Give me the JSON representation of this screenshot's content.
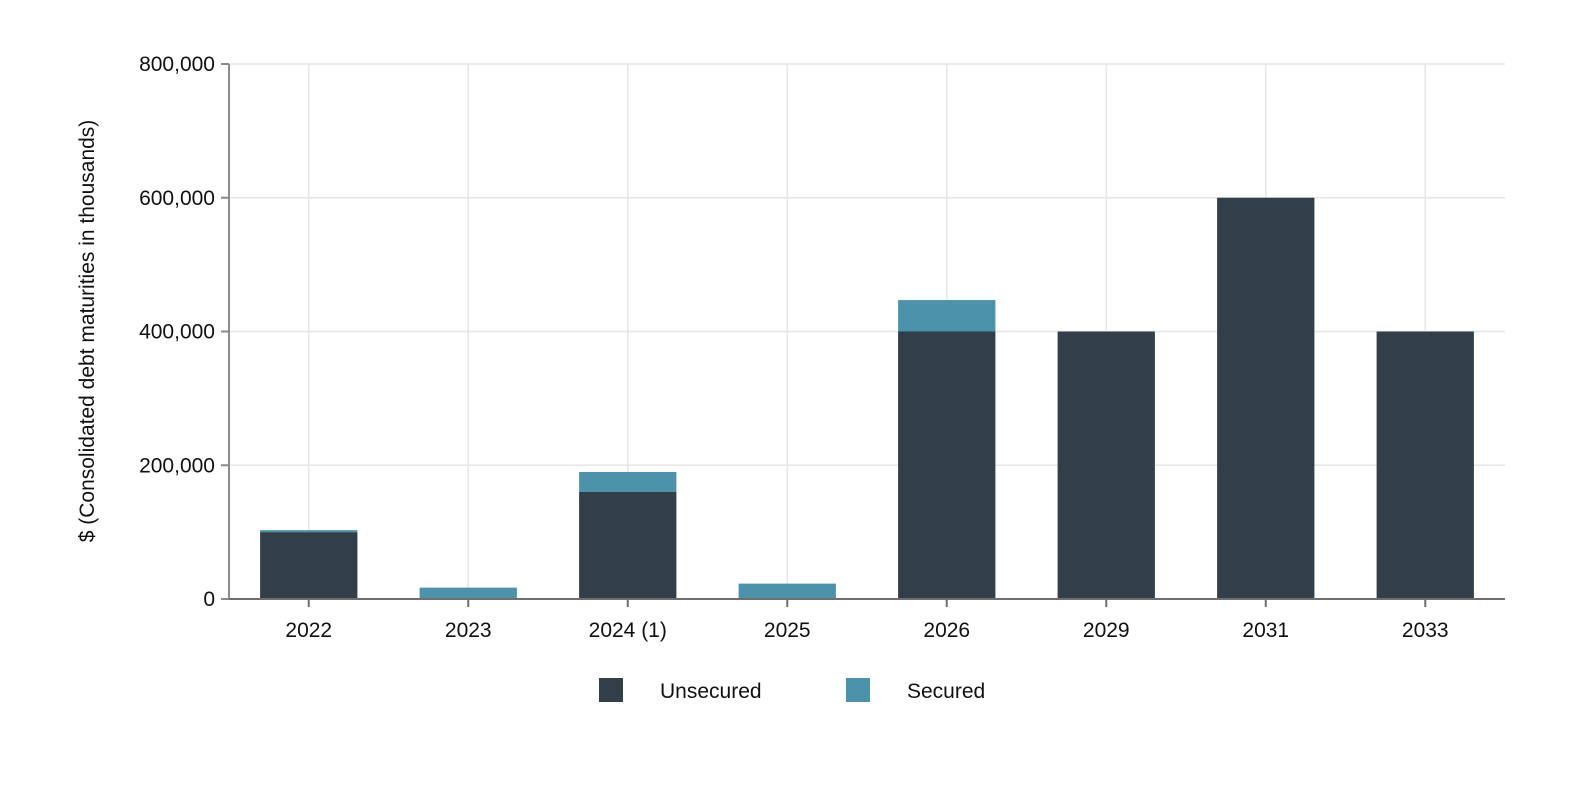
{
  "chart_data": {
    "type": "bar",
    "stacked": true,
    "title": "",
    "xlabel": "",
    "ylabel": "$ (Consolidated debt maturities in thousands)",
    "categories": [
      "2022",
      "2023",
      "2024 (1)",
      "2025",
      "2026",
      "2029",
      "2031",
      "2033"
    ],
    "series": [
      {
        "name": "Unsecured",
        "color": "#323f48",
        "values": [
          100000,
          0,
          160000,
          0,
          400000,
          400000,
          600000,
          400000
        ]
      },
      {
        "name": "Secured",
        "color": "#4d92ab",
        "values": [
          3000,
          17000,
          30000,
          23000,
          47000,
          0,
          0,
          0
        ]
      }
    ],
    "ylim": [
      0,
      800000
    ],
    "yticks": [
      0,
      200000,
      400000,
      600000,
      800000
    ],
    "ytick_labels": [
      "0",
      "200,000",
      "400,000",
      "600,000",
      "800,000"
    ],
    "grid": true,
    "legend_position": "bottom-center"
  }
}
